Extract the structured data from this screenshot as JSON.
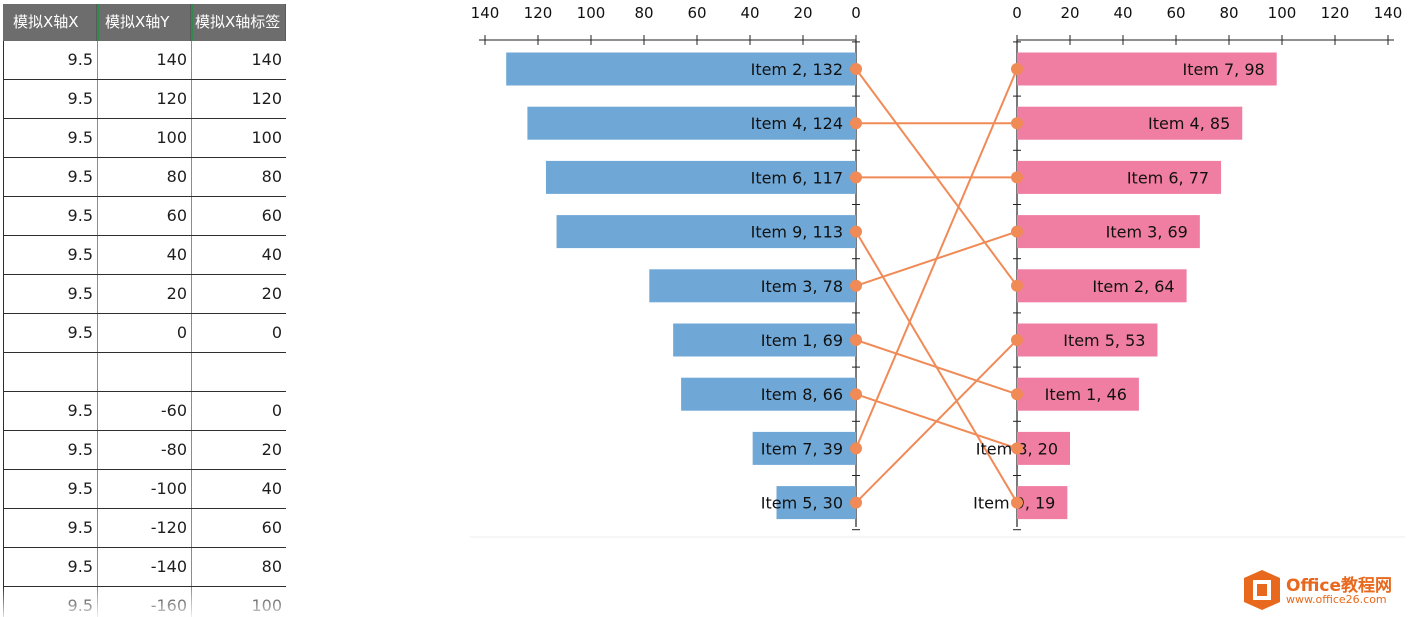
{
  "spreadsheet": {
    "headers": [
      "模拟X轴X",
      "模拟X轴Y",
      "模拟X轴标签"
    ],
    "rows": [
      [
        "9.5",
        "140",
        "140"
      ],
      [
        "9.5",
        "120",
        "120"
      ],
      [
        "9.5",
        "100",
        "100"
      ],
      [
        "9.5",
        "80",
        "80"
      ],
      [
        "9.5",
        "60",
        "60"
      ],
      [
        "9.5",
        "40",
        "40"
      ],
      [
        "9.5",
        "20",
        "20"
      ],
      [
        "9.5",
        "0",
        "0"
      ],
      [
        "",
        "",
        ""
      ],
      [
        "9.5",
        "-60",
        "0"
      ],
      [
        "9.5",
        "-80",
        "20"
      ],
      [
        "9.5",
        "-100",
        "40"
      ],
      [
        "9.5",
        "-120",
        "60"
      ],
      [
        "9.5",
        "-140",
        "80"
      ],
      [
        "9.5",
        "-160",
        "100"
      ]
    ]
  },
  "chart_data": {
    "type": "bar",
    "title": "",
    "axis_ticks": [
      0,
      20,
      40,
      60,
      80,
      100,
      120,
      140
    ],
    "xlim": [
      0,
      140
    ],
    "colors": {
      "left_bars": "#6fa8d6",
      "right_bars": "#f07ea3",
      "connectors": "#f08a57",
      "axis": "#222222"
    },
    "left": {
      "items": [
        "Item 2",
        "Item 4",
        "Item 6",
        "Item 9",
        "Item 3",
        "Item 1",
        "Item 8",
        "Item 7",
        "Item 5"
      ],
      "values": [
        132,
        124,
        117,
        113,
        78,
        69,
        66,
        39,
        30
      ],
      "labels": [
        "Item 2, 132",
        "Item 4, 124",
        "Item 6, 117",
        "Item 9, 113",
        "Item 3, 78",
        "Item 1, 69",
        "Item 8, 66",
        "Item 7, 39",
        "Item 5, 30"
      ]
    },
    "right": {
      "items": [
        "Item 7",
        "Item 4",
        "Item 6",
        "Item 3",
        "Item 2",
        "Item 5",
        "Item 1",
        "Item 8",
        "Item 9"
      ],
      "values": [
        98,
        85,
        77,
        69,
        64,
        53,
        46,
        20,
        19
      ],
      "labels": [
        "Item 7, 98",
        "Item 4, 85",
        "Item 6, 77",
        "Item 3, 69",
        "Item 2, 64",
        "Item 5, 53",
        "Item 1, 46",
        "Item 8, 20",
        "Item 9, 19"
      ]
    },
    "connections": [
      {
        "item": "Item 2",
        "left_rank": 1,
        "right_rank": 5
      },
      {
        "item": "Item 4",
        "left_rank": 2,
        "right_rank": 2
      },
      {
        "item": "Item 6",
        "left_rank": 3,
        "right_rank": 3
      },
      {
        "item": "Item 9",
        "left_rank": 4,
        "right_rank": 9
      },
      {
        "item": "Item 3",
        "left_rank": 5,
        "right_rank": 4
      },
      {
        "item": "Item 1",
        "left_rank": 6,
        "right_rank": 7
      },
      {
        "item": "Item 8",
        "left_rank": 7,
        "right_rank": 8
      },
      {
        "item": "Item 7",
        "left_rank": 8,
        "right_rank": 1
      },
      {
        "item": "Item 5",
        "left_rank": 9,
        "right_rank": 6
      }
    ]
  },
  "watermark": {
    "title": "Office教程网",
    "url": "www.office26.com"
  }
}
